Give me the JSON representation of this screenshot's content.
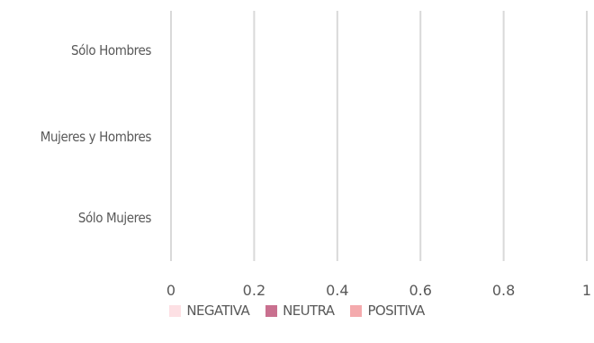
{
  "chart_data": {
    "type": "bar",
    "orientation": "horizontal",
    "stacked": true,
    "categories": [
      "Sólo Hombres",
      "Mujeres y Hombres",
      "Sólo Mujeres"
    ],
    "series": [
      {
        "name": "NEGATIVA",
        "values": [
          0,
          0,
          0
        ],
        "color": "#fde0e4"
      },
      {
        "name": "NEUTRA",
        "values": [
          0,
          0,
          0
        ],
        "color": "#c9708f"
      },
      {
        "name": "POSITIVA",
        "values": [
          0,
          0,
          0
        ],
        "color": "#f4aaad"
      }
    ],
    "xticks": [
      "0",
      "0.2",
      "0.4",
      "0.6",
      "0.8",
      "1"
    ],
    "xlim": [
      0,
      1
    ],
    "grid": true,
    "legend_position": "bottom",
    "gridline_color": "#d9d9d9"
  }
}
